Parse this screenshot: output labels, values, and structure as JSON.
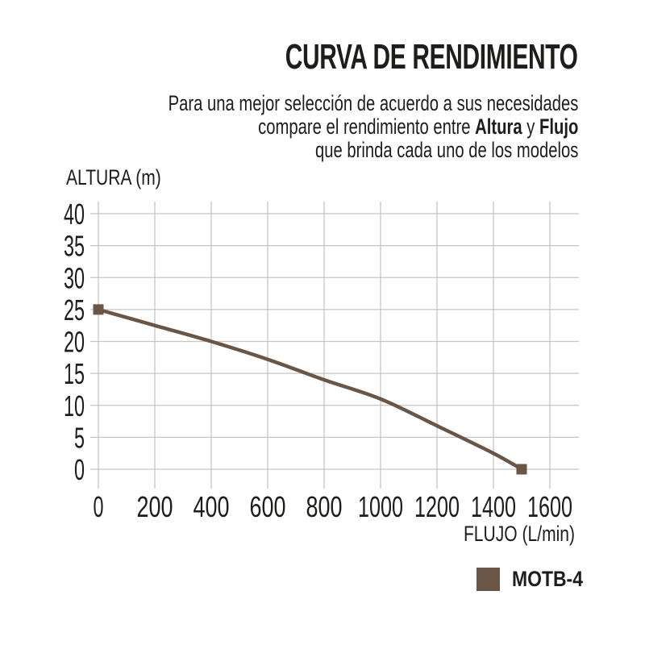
{
  "header": {
    "title": "CURVA DE RENDIMIENTO",
    "subtitle": {
      "line1": "Para una mejor selección de acuerdo a sus necesidades",
      "line2_pre": "compare el rendimiento entre ",
      "line2_bold1": "Altura",
      "line2_mid": " y ",
      "line2_bold2": "Flujo",
      "line3": "que brinda cada uno de los modelos"
    }
  },
  "chart_data": {
    "type": "line",
    "title": "CURVA DE RENDIMIENTO",
    "xlabel": "FLUJO (L/min)",
    "ylabel": "ALTURA (m)",
    "xlim": [
      0,
      1600
    ],
    "ylim": [
      0,
      40
    ],
    "x_ticks": [
      0,
      200,
      400,
      600,
      800,
      1000,
      1200,
      1400,
      1600
    ],
    "y_ticks": [
      0,
      5,
      10,
      15,
      20,
      25,
      30,
      35,
      40
    ],
    "grid": true,
    "grid_color": "#c5c5c5",
    "legend_position": "bottom-right",
    "x": [
      0,
      200,
      400,
      600,
      800,
      1000,
      1200,
      1400,
      1500
    ],
    "series": [
      {
        "name": "MOTB-4",
        "color": "#6a5647",
        "marker": "square-at-endpoints",
        "values": [
          25,
          22.5,
          20,
          17.2,
          14,
          11,
          6.8,
          2.5,
          0
        ]
      }
    ]
  },
  "legend": {
    "label": "MOTB-4",
    "swatch_color": "#6a5647"
  },
  "colors": {
    "text": "#1d1d1b",
    "curve": "#6a5647",
    "grid": "#c5c5c5"
  }
}
